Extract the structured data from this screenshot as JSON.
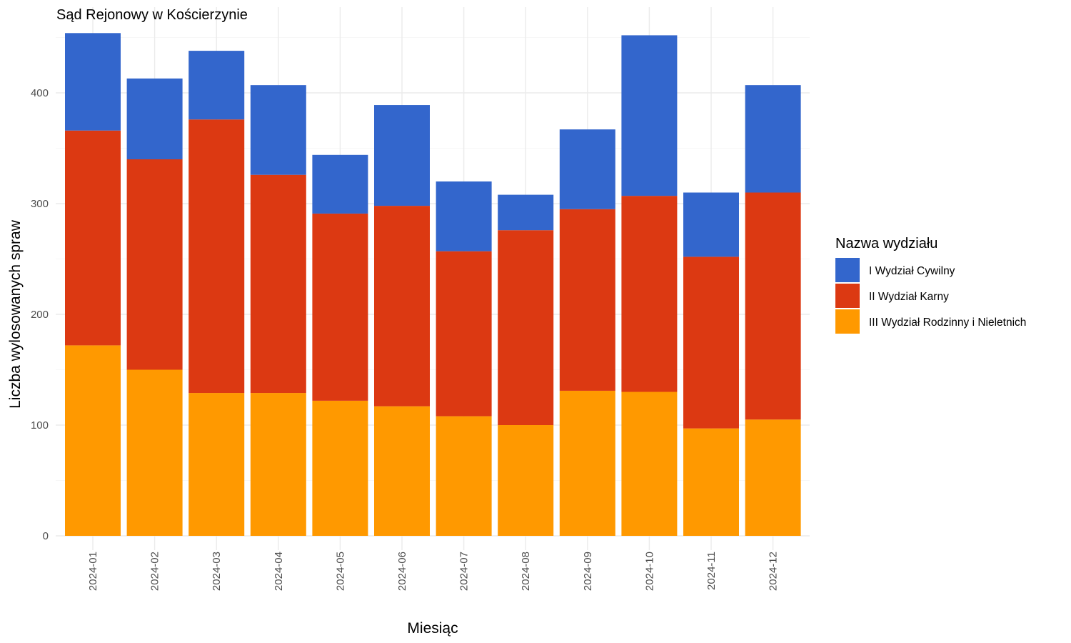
{
  "chart_data": {
    "type": "bar",
    "stacked": true,
    "title": "Sąd Rejonowy w Kościerzynie",
    "xlabel": "Miesiąc",
    "ylabel": "Liczba wylosowanych spraw",
    "ylim": [
      0,
      475
    ],
    "yticks": [
      0,
      100,
      200,
      300,
      400
    ],
    "grid": true,
    "legend_title": "Nazwa wydziału",
    "legend_position": "right",
    "categories": [
      "2024-01",
      "2024-02",
      "2024-03",
      "2024-04",
      "2024-05",
      "2024-06",
      "2024-07",
      "2024-08",
      "2024-09",
      "2024-10",
      "2024-11",
      "2024-12"
    ],
    "series": [
      {
        "name": "III Wydział Rodzinny i Nieletnich",
        "color": "#FF9900",
        "values": [
          172,
          150,
          129,
          129,
          122,
          117,
          108,
          100,
          131,
          130,
          97,
          105
        ]
      },
      {
        "name": "II Wydział Karny",
        "color": "#DC3912",
        "values": [
          194,
          190,
          247,
          197,
          169,
          181,
          149,
          176,
          164,
          177,
          155,
          205
        ]
      },
      {
        "name": "I Wydział Cywilny",
        "color": "#3366CC",
        "values": [
          88,
          73,
          62,
          81,
          53,
          91,
          63,
          32,
          72,
          145,
          58,
          97
        ]
      }
    ],
    "legend_order": [
      "I Wydział Cywilny",
      "II Wydział Karny",
      "III Wydział Rodzinny i Nieletnich"
    ]
  }
}
